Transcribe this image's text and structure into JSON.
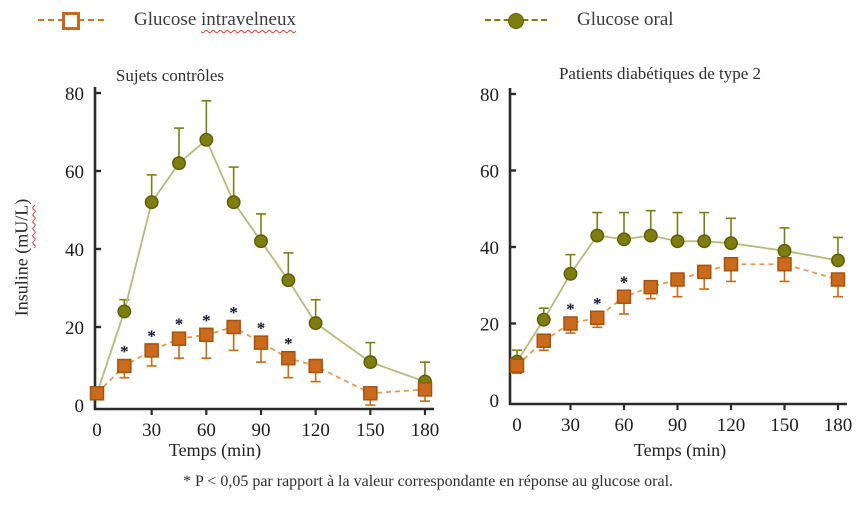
{
  "legend": {
    "iv": {
      "label_prefix": "Glucose ",
      "label_misspelled": "intravelneux"
    },
    "oral": {
      "label": "Glucose oral"
    }
  },
  "y_axis_label": {
    "prefix": "Insuline (",
    "unit": "mU/L",
    "suffix": ")"
  },
  "footnote": "* P < 0,05 par rapport à la valeur correspondante en réponse au glucose oral.",
  "colors": {
    "oral_marker": "#7e7e10",
    "oral_marker_edge": "#5e5e04",
    "oral_line": "#b6ba7c",
    "iv_marker": "#c96a1c",
    "iv_marker_edge": "#a8520e",
    "iv_line": "#e59a55",
    "axis": "#2a2a2a",
    "star": "#12122c",
    "spellcheck_wavy": "#e23b2e"
  },
  "chart_data": [
    {
      "type": "line",
      "title": "Sujets contrôles",
      "xlabel": "Temps (min)",
      "ylabel": "Insuline (mU/L)",
      "xlim": [
        0,
        180
      ],
      "ylim": [
        0,
        80
      ],
      "xticks": [
        0,
        30,
        60,
        90,
        120,
        150,
        180
      ],
      "yticks": [
        0,
        20,
        40,
        60,
        80
      ],
      "grid": false,
      "x": [
        0,
        15,
        30,
        45,
        60,
        75,
        90,
        105,
        120,
        150,
        180
      ],
      "series": [
        {
          "name": "Glucose oral",
          "marker": "circle",
          "line_style": "solid",
          "values": [
            3,
            24,
            52,
            62,
            68,
            52,
            42,
            32,
            21,
            11,
            6
          ],
          "err_up": [
            1,
            3,
            7,
            9,
            10,
            9,
            7,
            7,
            6,
            5,
            5
          ],
          "err_down": [
            0,
            0,
            0,
            0,
            0,
            0,
            0,
            0,
            0,
            0,
            0
          ],
          "stars": [
            false,
            false,
            false,
            false,
            false,
            false,
            false,
            false,
            false,
            false,
            false
          ]
        },
        {
          "name": "Glucose intravelneux",
          "marker": "square",
          "line_style": "dashed",
          "values": [
            3,
            10,
            14,
            17,
            18,
            20,
            16,
            12,
            10,
            3,
            4
          ],
          "err_up": [
            0,
            0,
            0,
            0,
            0,
            0,
            0,
            0,
            0,
            0,
            0
          ],
          "err_down": [
            1,
            3,
            4,
            5,
            6,
            6,
            5,
            5,
            4,
            3,
            3
          ],
          "stars": [
            false,
            true,
            true,
            true,
            true,
            true,
            true,
            true,
            false,
            false,
            false
          ]
        }
      ]
    },
    {
      "type": "line",
      "title": "Patients diabétiques de type 2",
      "xlabel": "Temps (min)",
      "ylabel": "Insuline (mU/L)",
      "xlim": [
        0,
        180
      ],
      "ylim": [
        0,
        80
      ],
      "xticks": [
        0,
        30,
        60,
        90,
        120,
        150,
        180
      ],
      "yticks": [
        0,
        20,
        40,
        60,
        80
      ],
      "grid": false,
      "x": [
        0,
        15,
        30,
        45,
        60,
        75,
        90,
        105,
        120,
        150,
        180
      ],
      "series": [
        {
          "name": "Glucose oral",
          "marker": "circle",
          "line_style": "solid",
          "values": [
            10,
            21,
            33,
            43,
            42,
            43,
            41.5,
            41.5,
            41,
            39,
            36.5
          ],
          "err_up": [
            3,
            3,
            5,
            6,
            7,
            6.5,
            7.5,
            7.5,
            6.5,
            6,
            6
          ],
          "err_down": [
            0,
            0,
            0,
            0,
            0,
            0,
            0,
            0,
            0,
            0,
            0
          ],
          "stars": [
            false,
            false,
            false,
            false,
            false,
            false,
            false,
            false,
            false,
            false,
            false
          ]
        },
        {
          "name": "Glucose intravelneux",
          "marker": "square",
          "line_style": "dashed",
          "values": [
            9,
            15.5,
            20,
            21.5,
            27,
            29.5,
            31.5,
            33.5,
            35.5,
            35.5,
            31.5
          ],
          "err_up": [
            0,
            0,
            0,
            0,
            0,
            0,
            0,
            0,
            0,
            0,
            0
          ],
          "err_down": [
            2,
            2.5,
            2.5,
            2.5,
            4.5,
            3,
            4.5,
            4.5,
            4.5,
            4.5,
            4.5
          ],
          "stars": [
            false,
            false,
            true,
            true,
            true,
            false,
            false,
            false,
            false,
            false,
            false
          ]
        }
      ]
    }
  ]
}
